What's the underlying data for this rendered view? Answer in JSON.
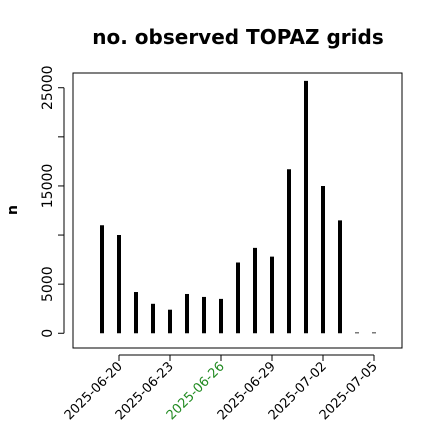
{
  "chart_data": {
    "type": "bar",
    "title": "no. observed TOPAZ grids",
    "xlabel": "",
    "ylabel": "n",
    "ylim": [
      -1500,
      26500
    ],
    "x_tick_labels": [
      {
        "label": "2025-06-20",
        "day": 20,
        "color": "#000000"
      },
      {
        "label": "2025-06-23",
        "day": 23,
        "color": "#000000"
      },
      {
        "label": "2025-06-26",
        "day": 26,
        "color": "#228b22"
      },
      {
        "label": "2025-06-29",
        "day": 29,
        "color": "#000000"
      },
      {
        "label": "2025-07-02",
        "day": 32,
        "color": "#000000"
      },
      {
        "label": "2025-07-05",
        "day": 35,
        "color": "#000000"
      }
    ],
    "y_ticks": [
      0,
      5000,
      15000,
      25000
    ],
    "y_minor_ticks": [
      10000,
      20000
    ],
    "points": [
      {
        "date": "2025-06-19",
        "day": 19,
        "value": 11000
      },
      {
        "date": "2025-06-20",
        "day": 20,
        "value": 10000
      },
      {
        "date": "2025-06-21",
        "day": 21,
        "value": 4200
      },
      {
        "date": "2025-06-22",
        "day": 22,
        "value": 3000
      },
      {
        "date": "2025-06-23",
        "day": 23,
        "value": 2400
      },
      {
        "date": "2025-06-24",
        "day": 24,
        "value": 4000
      },
      {
        "date": "2025-06-25",
        "day": 25,
        "value": 3700
      },
      {
        "date": "2025-06-26",
        "day": 26,
        "value": 3500
      },
      {
        "date": "2025-06-27",
        "day": 27,
        "value": 7200
      },
      {
        "date": "2025-06-28",
        "day": 28,
        "value": 8700
      },
      {
        "date": "2025-06-29",
        "day": 29,
        "value": 7800
      },
      {
        "date": "2025-06-30",
        "day": 30,
        "value": 16700
      },
      {
        "date": "2025-07-01",
        "day": 31,
        "value": 25700
      },
      {
        "date": "2025-07-02",
        "day": 32,
        "value": 15000
      },
      {
        "date": "2025-07-03",
        "day": 33,
        "value": 11500
      },
      {
        "date": "2025-07-04",
        "day": 34,
        "value": 80
      },
      {
        "date": "2025-07-05",
        "day": 35,
        "value": 80
      }
    ],
    "bar_color": "#000000",
    "grid": false,
    "legend": "none"
  }
}
